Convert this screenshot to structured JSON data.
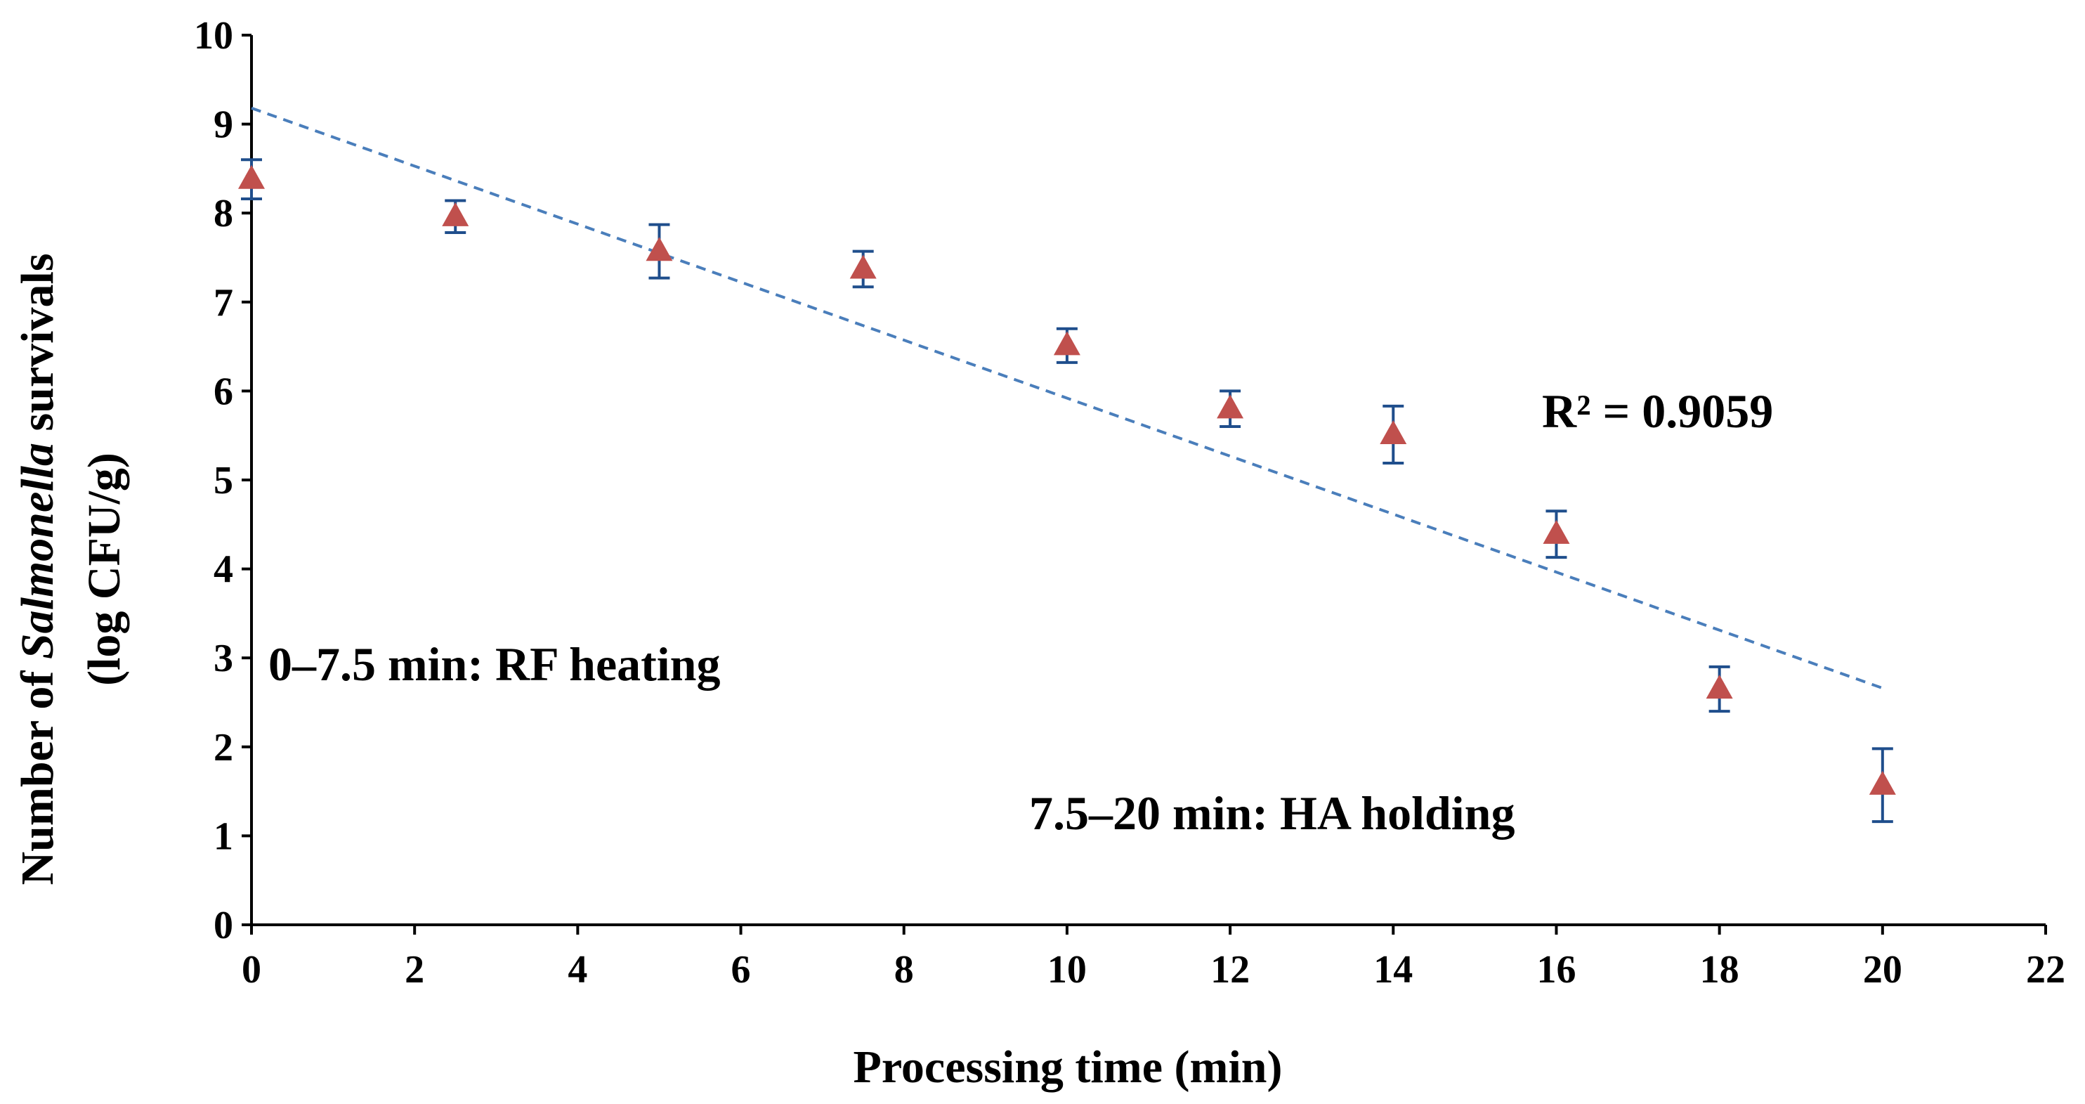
{
  "chart_data": {
    "type": "scatter",
    "title": "",
    "xlabel": "Processing time (min)",
    "ylabel": {
      "prefix": "Number of ",
      "italic": "Salmonella",
      "suffix": " survivals",
      "line2": "(log CFU/g)"
    },
    "xlim": [
      0,
      22
    ],
    "ylim": [
      0,
      10
    ],
    "x_ticks": [
      "0",
      "2",
      "4",
      "6",
      "8",
      "10",
      "12",
      "14",
      "16",
      "18",
      "20",
      "22"
    ],
    "y_ticks": [
      "0",
      "1",
      "2",
      "3",
      "4",
      "5",
      "6",
      "7",
      "8",
      "9",
      "10"
    ],
    "grid": false,
    "series": [
      {
        "name": "Salmonella survivals",
        "marker": "triangle",
        "color": "#c0504d",
        "error_color": "#1f4e8c",
        "x": [
          0,
          2.5,
          5,
          7.5,
          10,
          12,
          14,
          16,
          18,
          20
        ],
        "y": [
          8.38,
          7.96,
          7.57,
          7.37,
          6.51,
          5.8,
          5.51,
          4.39,
          2.65,
          1.57
        ],
        "error": [
          0.22,
          0.18,
          0.3,
          0.2,
          0.19,
          0.2,
          0.32,
          0.26,
          0.25,
          0.41
        ]
      }
    ],
    "trendline": {
      "type": "linear",
      "style": "dashed",
      "color": "#4a7ebb",
      "x": [
        0,
        20
      ],
      "y": [
        9.18,
        2.66
      ],
      "r2_label": "R² = 0.9059"
    },
    "annotations": [
      "0–7.5 min: RF heating",
      "7.5–20 min: HA holding"
    ]
  }
}
